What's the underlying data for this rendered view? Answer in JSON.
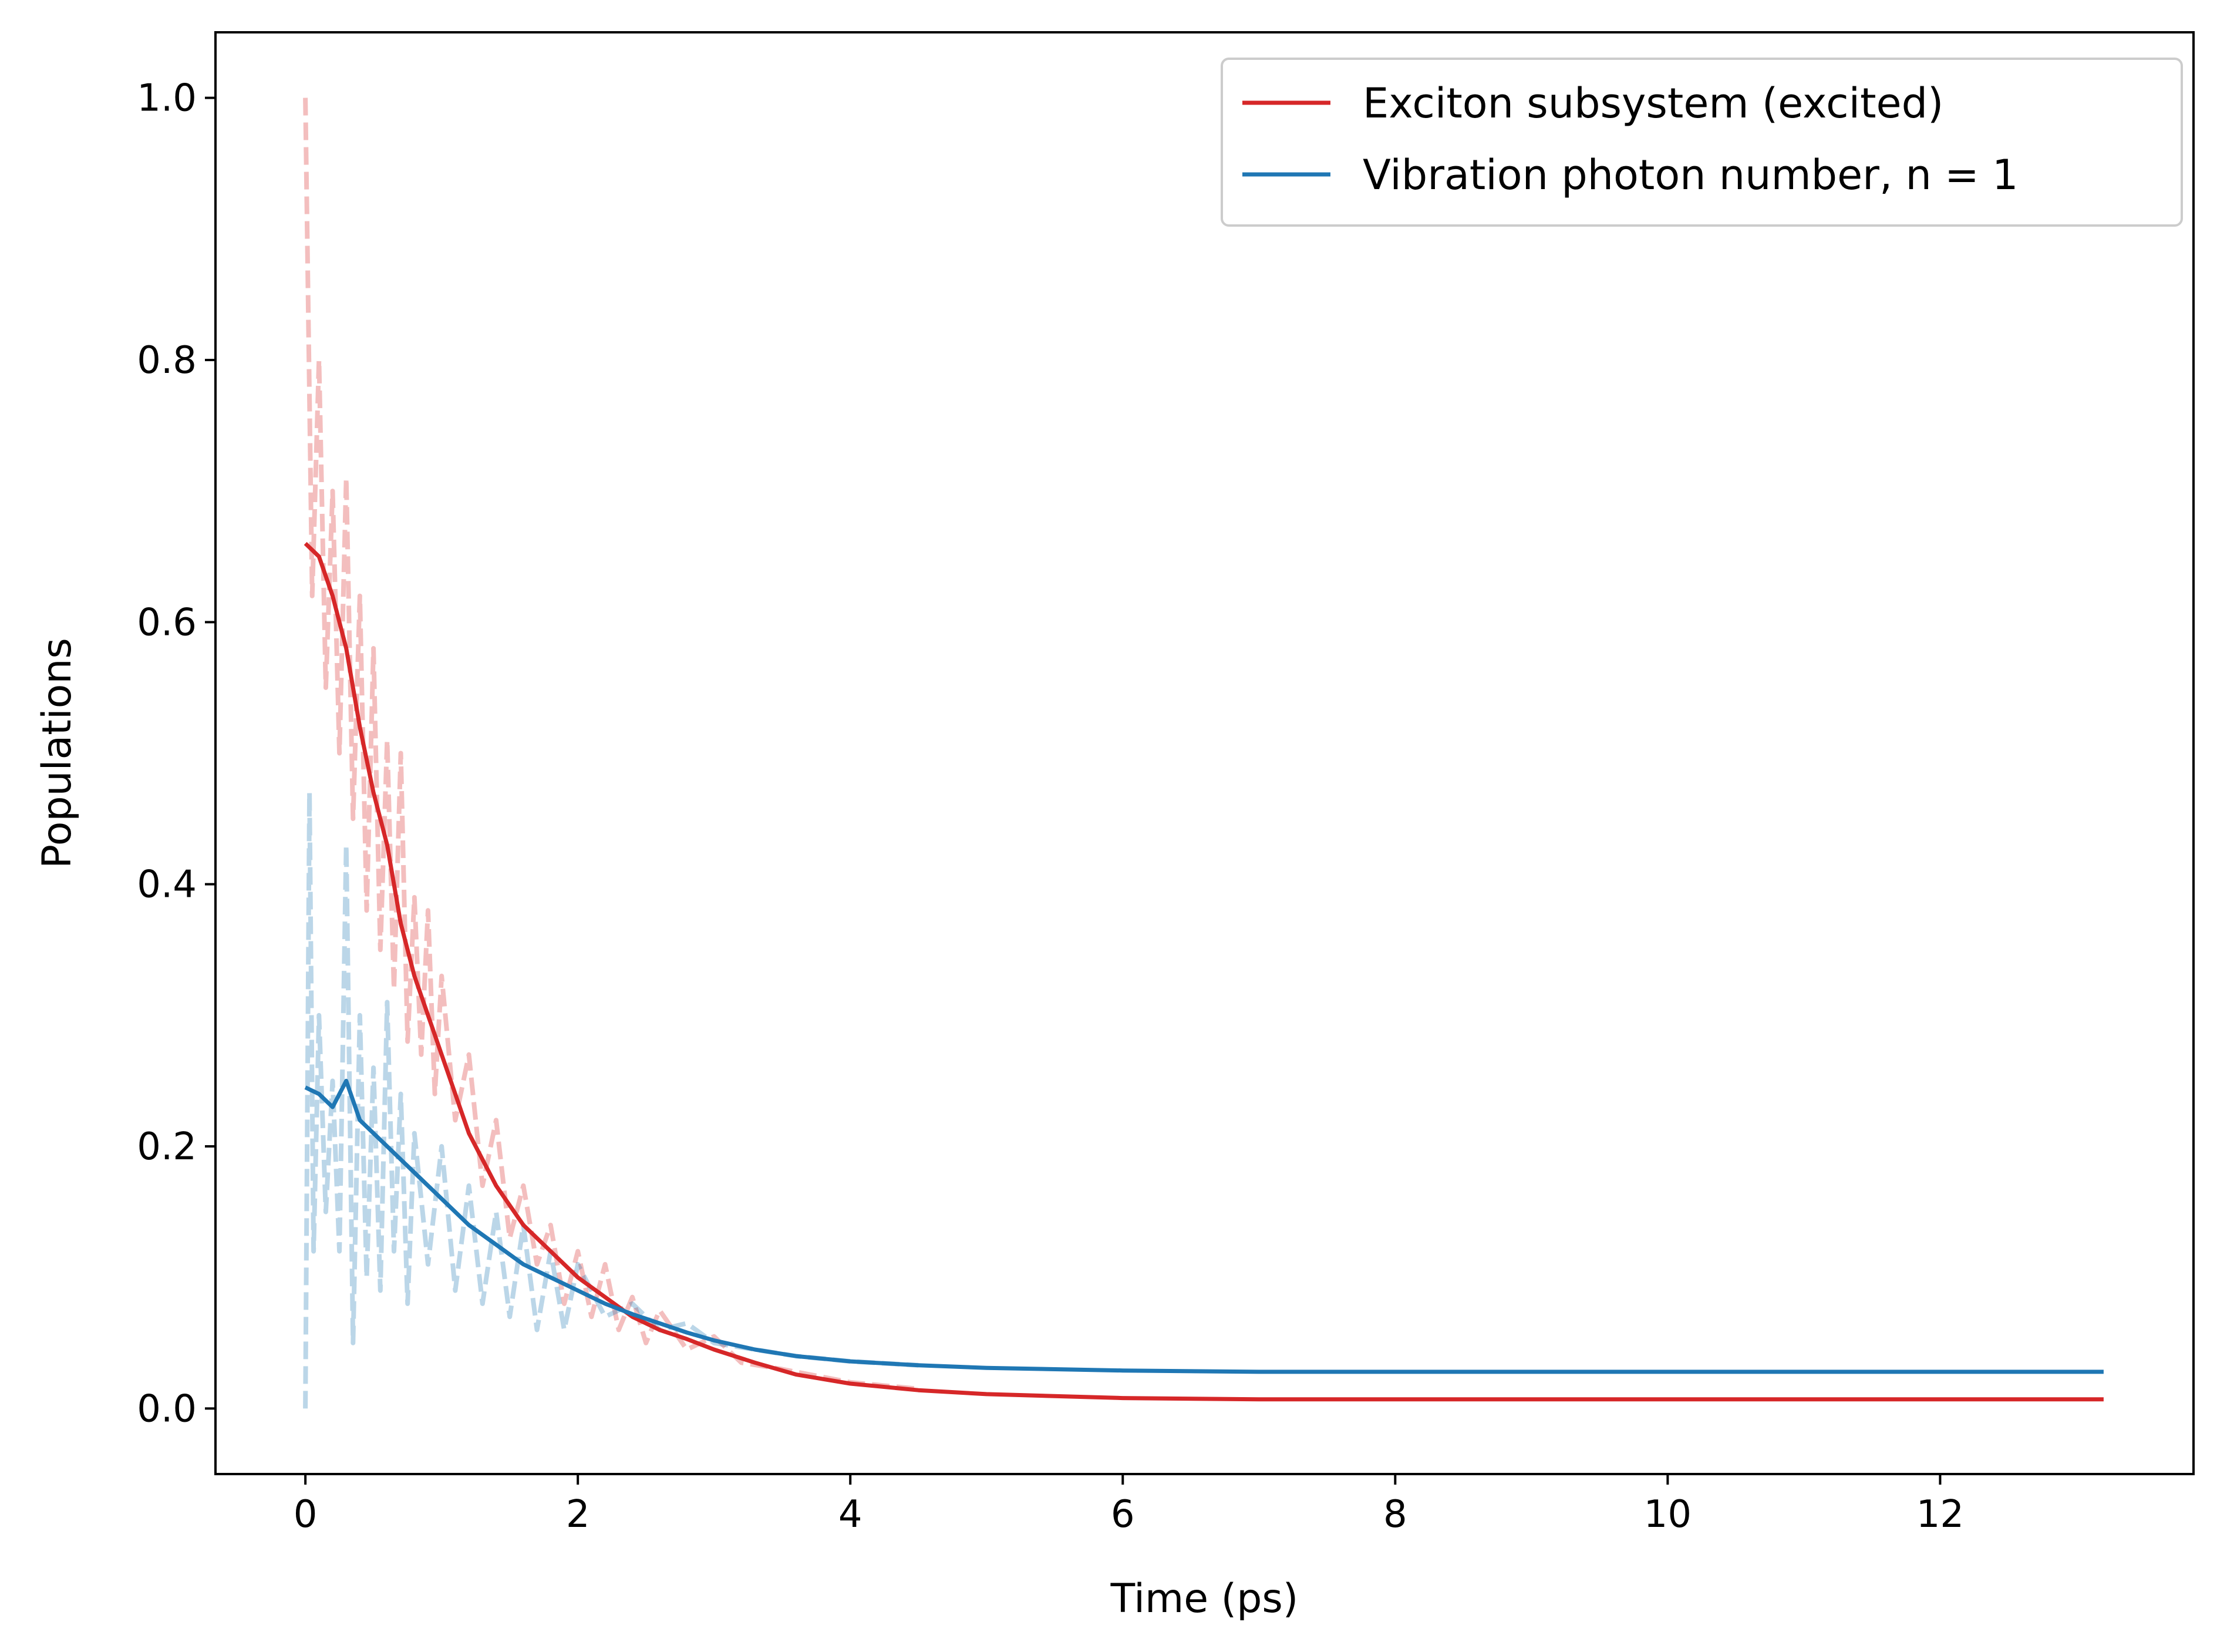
{
  "chart_data": {
    "type": "line",
    "title": "",
    "xlabel": "Time (ps)",
    "ylabel": "Populations",
    "xlim": [
      -0.66,
      13.86
    ],
    "ylim": [
      -0.05,
      1.05
    ],
    "xticks": [
      0,
      2,
      4,
      6,
      8,
      10,
      12
    ],
    "yticks": [
      0.0,
      0.2,
      0.4,
      0.6,
      0.8,
      1.0
    ],
    "xtick_labels": [
      "0",
      "2",
      "4",
      "6",
      "8",
      "10",
      "12"
    ],
    "ytick_labels": [
      "0.0",
      "0.2",
      "0.4",
      "0.6",
      "0.8",
      "1.0"
    ],
    "grid": false,
    "legend_position": "top-right",
    "series": [
      {
        "name": "Exciton subsystem (excited)",
        "color": "#d62728",
        "style": "solid",
        "x": [
          0,
          0.1,
          0.2,
          0.3,
          0.4,
          0.5,
          0.6,
          0.7,
          0.8,
          1.0,
          1.2,
          1.4,
          1.6,
          1.8,
          2.0,
          2.2,
          2.4,
          2.6,
          2.8,
          3.0,
          3.3,
          3.6,
          4.0,
          4.5,
          5.0,
          6.0,
          7.0,
          8.0,
          10.0,
          13.2
        ],
        "y": [
          0.66,
          0.65,
          0.62,
          0.58,
          0.52,
          0.47,
          0.43,
          0.37,
          0.33,
          0.27,
          0.21,
          0.17,
          0.14,
          0.12,
          0.1,
          0.085,
          0.07,
          0.06,
          0.053,
          0.045,
          0.035,
          0.026,
          0.019,
          0.014,
          0.011,
          0.008,
          0.007,
          0.007,
          0.007,
          0.007
        ]
      },
      {
        "name": "Vibration photon number, n = 1",
        "color": "#1f77b4",
        "style": "solid",
        "x": [
          0,
          0.1,
          0.2,
          0.3,
          0.4,
          0.5,
          0.6,
          0.7,
          0.8,
          1.0,
          1.2,
          1.4,
          1.6,
          1.8,
          2.0,
          2.2,
          2.4,
          2.6,
          2.8,
          3.0,
          3.3,
          3.6,
          4.0,
          4.5,
          5.0,
          6.0,
          7.0,
          8.0,
          10.0,
          13.2
        ],
        "y": [
          0.245,
          0.24,
          0.23,
          0.25,
          0.22,
          0.21,
          0.2,
          0.19,
          0.18,
          0.16,
          0.14,
          0.125,
          0.11,
          0.1,
          0.09,
          0.08,
          0.072,
          0.065,
          0.058,
          0.052,
          0.045,
          0.04,
          0.036,
          0.033,
          0.031,
          0.029,
          0.028,
          0.028,
          0.028,
          0.028
        ]
      },
      {
        "name": "",
        "color": "#d62728",
        "style": "dashed-faint",
        "x": [
          0,
          0.05,
          0.1,
          0.15,
          0.2,
          0.25,
          0.3,
          0.35,
          0.4,
          0.45,
          0.5,
          0.55,
          0.6,
          0.65,
          0.7,
          0.75,
          0.8,
          0.85,
          0.9,
          0.95,
          1.0,
          1.1,
          1.2,
          1.3,
          1.4,
          1.5,
          1.6,
          1.7,
          1.8,
          1.9,
          2.0,
          2.1,
          2.2,
          2.3,
          2.4,
          2.5,
          2.6,
          2.8,
          3.0,
          3.2,
          3.5,
          4.0,
          4.5
        ],
        "y": [
          1.0,
          0.62,
          0.8,
          0.55,
          0.7,
          0.5,
          0.71,
          0.45,
          0.62,
          0.38,
          0.58,
          0.35,
          0.51,
          0.32,
          0.5,
          0.28,
          0.39,
          0.27,
          0.38,
          0.24,
          0.33,
          0.22,
          0.27,
          0.17,
          0.22,
          0.13,
          0.17,
          0.11,
          0.14,
          0.08,
          0.12,
          0.07,
          0.11,
          0.06,
          0.085,
          0.05,
          0.075,
          0.045,
          0.055,
          0.035,
          0.03,
          0.02,
          0.015
        ]
      },
      {
        "name": "",
        "color": "#1f77b4",
        "style": "dashed-faint",
        "x": [
          0,
          0.03,
          0.06,
          0.1,
          0.15,
          0.2,
          0.25,
          0.3,
          0.35,
          0.4,
          0.45,
          0.5,
          0.55,
          0.6,
          0.65,
          0.7,
          0.75,
          0.8,
          0.9,
          1.0,
          1.1,
          1.2,
          1.3,
          1.4,
          1.5,
          1.6,
          1.7,
          1.8,
          1.9,
          2.0,
          2.2,
          2.4,
          2.6,
          2.8,
          3.0,
          3.3,
          3.6,
          4.0,
          4.5
        ],
        "y": [
          0.0,
          0.47,
          0.12,
          0.3,
          0.15,
          0.25,
          0.12,
          0.43,
          0.05,
          0.3,
          0.1,
          0.26,
          0.09,
          0.31,
          0.12,
          0.24,
          0.08,
          0.21,
          0.11,
          0.2,
          0.09,
          0.17,
          0.08,
          0.15,
          0.07,
          0.14,
          0.06,
          0.12,
          0.06,
          0.11,
          0.07,
          0.08,
          0.06,
          0.065,
          0.05,
          0.045,
          0.04,
          0.036,
          0.033
        ]
      }
    ]
  }
}
